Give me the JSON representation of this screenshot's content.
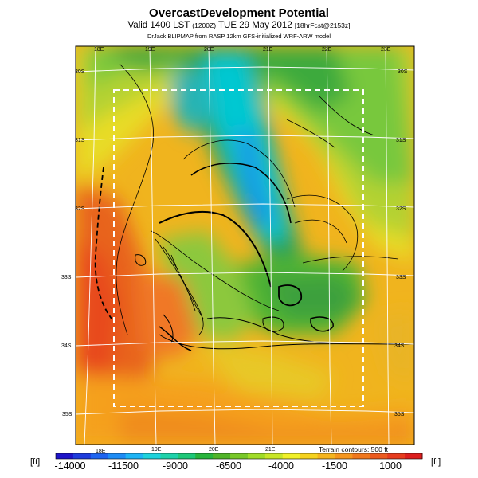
{
  "header": {
    "title": "OvercastDevelopment Potential",
    "valid_prefix": "Valid 1400 LST",
    "valid_utc": "(1200Z)",
    "valid_date": "TUE 29 May 2012",
    "valid_fcst": "[18hrFcst@2153z]",
    "credit": "DrJack BLIPMAP from RASP 12km GFS-initialized WRF-ARW model"
  },
  "map": {
    "top_lon_labels": [
      "18E",
      "19E",
      "20E",
      "21E",
      "22E",
      "23E"
    ],
    "bottom_lon_labels": [
      "18E",
      "19E",
      "20E",
      "21E"
    ],
    "left_lat_labels": [
      "30S",
      "31S",
      "32S",
      "33S",
      "34S",
      "35S"
    ],
    "right_lat_labels": [
      "30S",
      "31S",
      "32S",
      "33S",
      "34S",
      "35S"
    ],
    "terrain_note": "Terrain contours: 500 ft",
    "field_colors": {
      "ocean": "#e8501e",
      "coast": "#f08a1e",
      "mid": "#e8c81e",
      "green": "#78b83c",
      "dark_green": "#28a028",
      "cyan": "#00c8dc",
      "blue": "#1e96e6"
    }
  },
  "colorbar": {
    "unit_left": "[ft]",
    "unit_right": "[ft]",
    "labels": [
      "-14000",
      "-11500",
      "-9000",
      "-6500",
      "-4000",
      "-1500",
      "1000"
    ],
    "colors": [
      "#1e14c8",
      "#1e3cdc",
      "#1e64f0",
      "#1e8cf5",
      "#1eb4f5",
      "#1ed2dc",
      "#1ed2aa",
      "#1ec878",
      "#28b43c",
      "#50b428",
      "#78c828",
      "#a0dc28",
      "#c8e628",
      "#f0f028",
      "#f5d21e",
      "#f5b41e",
      "#f5961e",
      "#f0781e",
      "#eb5a1e",
      "#e63c1e",
      "#dc1e1e"
    ]
  }
}
